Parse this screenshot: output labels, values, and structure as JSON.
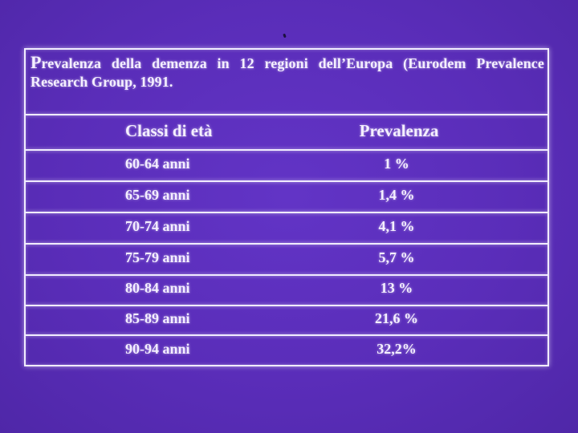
{
  "slide": {
    "caption_first_letter": "P",
    "caption_rest": "revalenza della demenza in 12 regioni dell’Europa (Eurodem Prevalence Research Group, 1991.",
    "colors": {
      "background": "#5b2fbc",
      "lines_and_text": "#f1ecff"
    }
  },
  "table": {
    "headers": {
      "age_classes": "Classi di età",
      "prevalence": "Prevalenza"
    },
    "rows": [
      {
        "age": "60-64 anni",
        "prevalence": "1 %"
      },
      {
        "age": "65-69 anni",
        "prevalence": "1,4 %"
      },
      {
        "age": "70-74 anni",
        "prevalence": "4,1 %"
      },
      {
        "age": "75-79 anni",
        "prevalence": "5,7 %"
      },
      {
        "age": "80-84 anni",
        "prevalence": "13 %"
      },
      {
        "age": "85-89 anni",
        "prevalence": "21,6 %"
      },
      {
        "age": "90-94 anni",
        "prevalence": "32,2%"
      }
    ]
  }
}
